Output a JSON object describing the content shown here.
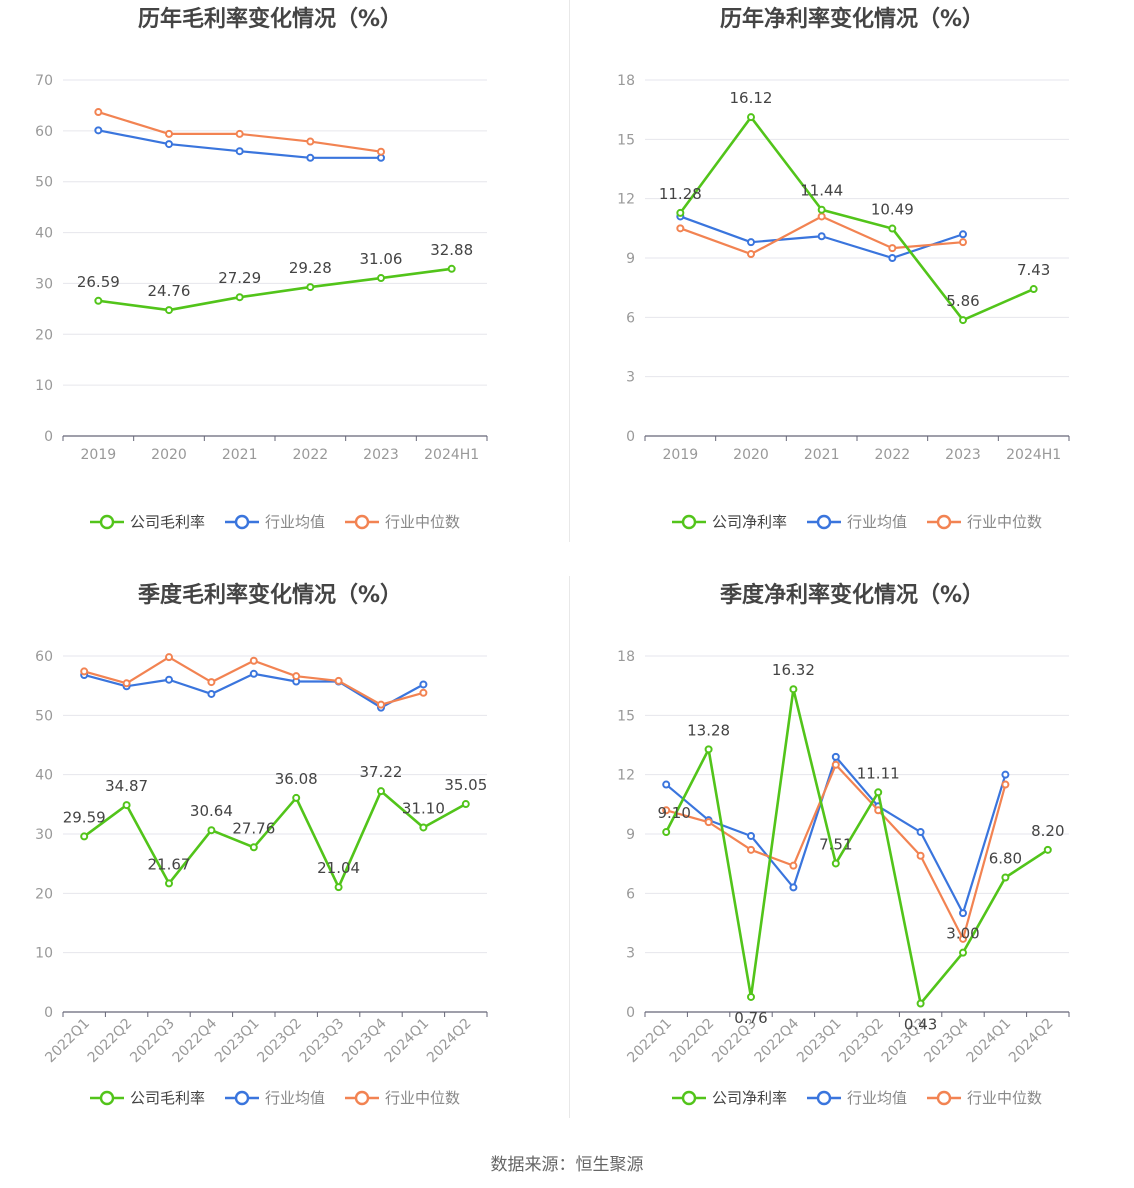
{
  "colors": {
    "company": "#52c41a",
    "avg": "#3a75dd",
    "median": "#f28352",
    "grid": "#e6e6ec",
    "axis": "#666677",
    "tick": "#999999",
    "title": "#444444",
    "label": "#444444"
  },
  "legend": {
    "company_gross": "公司毛利率",
    "company_net": "公司净利率",
    "avg": "行业均值",
    "median": "行业中位数"
  },
  "source": "数据来源：恒生聚源",
  "chart_data": [
    {
      "type": "line",
      "title": "历年毛利率变化情况（%）",
      "categories": [
        "2019",
        "2020",
        "2021",
        "2022",
        "2023",
        "2024H1"
      ],
      "ylim": [
        0,
        70
      ],
      "yticks": [
        0,
        10,
        20,
        30,
        40,
        50,
        60,
        70
      ],
      "legend_company": "公司毛利率",
      "series": [
        {
          "name": "公司毛利率",
          "role": "company",
          "values": [
            26.59,
            24.76,
            27.29,
            29.28,
            31.06,
            32.88
          ],
          "labels": [
            "26.59",
            "24.76",
            "27.29",
            "29.28",
            "31.06",
            "32.88"
          ]
        },
        {
          "name": "行业均值",
          "role": "avg",
          "values": [
            60.1,
            57.4,
            56.0,
            54.7,
            54.7,
            null
          ]
        },
        {
          "name": "行业中位数",
          "role": "median",
          "values": [
            63.7,
            59.4,
            59.4,
            57.9,
            55.9,
            null
          ]
        }
      ]
    },
    {
      "type": "line",
      "title": "历年净利率变化情况（%）",
      "categories": [
        "2019",
        "2020",
        "2021",
        "2022",
        "2023",
        "2024H1"
      ],
      "ylim": [
        0,
        18
      ],
      "yticks": [
        0,
        3,
        6,
        9,
        12,
        15,
        18
      ],
      "legend_company": "公司净利率",
      "series": [
        {
          "name": "公司净利率",
          "role": "company",
          "values": [
            11.28,
            16.12,
            11.44,
            10.49,
            5.86,
            7.43
          ],
          "labels": [
            "11.28",
            "16.12",
            "11.44",
            "10.49",
            "5.86",
            "7.43"
          ]
        },
        {
          "name": "行业均值",
          "role": "avg",
          "values": [
            11.1,
            9.8,
            10.1,
            9.0,
            10.2,
            null
          ]
        },
        {
          "name": "行业中位数",
          "role": "median",
          "values": [
            10.5,
            9.2,
            11.1,
            9.5,
            9.8,
            null
          ]
        }
      ]
    },
    {
      "type": "line",
      "title": "季度毛利率变化情况（%）",
      "categories": [
        "2022Q1",
        "2022Q2",
        "2022Q3",
        "2022Q4",
        "2023Q1",
        "2023Q2",
        "2023Q3",
        "2023Q4",
        "2024Q1",
        "2024Q2"
      ],
      "ylim": [
        0,
        60
      ],
      "yticks": [
        0,
        10,
        20,
        30,
        40,
        50,
        60
      ],
      "legend_company": "公司毛利率",
      "series": [
        {
          "name": "公司毛利率",
          "role": "company",
          "values": [
            29.59,
            34.87,
            21.67,
            30.64,
            27.76,
            36.08,
            21.04,
            37.22,
            31.1,
            35.05
          ],
          "labels": [
            "29.59",
            "34.87",
            "21.67",
            "30.64",
            "27.76",
            "36.08",
            "21.04",
            "37.22",
            "31.10",
            "35.05"
          ]
        },
        {
          "name": "行业均值",
          "role": "avg",
          "values": [
            56.8,
            54.9,
            56.0,
            53.6,
            57.0,
            55.7,
            55.7,
            51.3,
            55.2,
            null
          ]
        },
        {
          "name": "行业中位数",
          "role": "median",
          "values": [
            57.4,
            55.4,
            59.8,
            55.6,
            59.2,
            56.6,
            55.8,
            51.8,
            53.8,
            null
          ]
        }
      ]
    },
    {
      "type": "line",
      "title": "季度净利率变化情况（%）",
      "categories": [
        "2022Q1",
        "2022Q2",
        "2022Q3",
        "2022Q4",
        "2023Q1",
        "2023Q2",
        "2023Q3",
        "2023Q4",
        "2024Q1",
        "2024Q2"
      ],
      "ylim": [
        0,
        18
      ],
      "yticks": [
        0,
        3,
        6,
        9,
        12,
        15,
        18
      ],
      "legend_company": "公司净利率",
      "series": [
        {
          "name": "公司净利率",
          "role": "company",
          "values": [
            9.1,
            13.28,
            0.76,
            16.32,
            7.51,
            11.11,
            0.43,
            3.0,
            6.8,
            8.2
          ],
          "labels": [
            "9.10",
            "13.28",
            "0.76",
            "16.32",
            "7.51",
            "11.11",
            "0.43",
            "3.00",
            "6.80",
            "8.20"
          ]
        },
        {
          "name": "行业均值",
          "role": "avg",
          "values": [
            11.5,
            9.7,
            8.9,
            6.3,
            12.9,
            10.4,
            9.1,
            5.0,
            12.0,
            null
          ]
        },
        {
          "name": "行业中位数",
          "role": "median",
          "values": [
            10.2,
            9.6,
            8.2,
            7.4,
            12.5,
            10.2,
            7.9,
            3.7,
            11.5,
            null
          ]
        }
      ]
    }
  ]
}
